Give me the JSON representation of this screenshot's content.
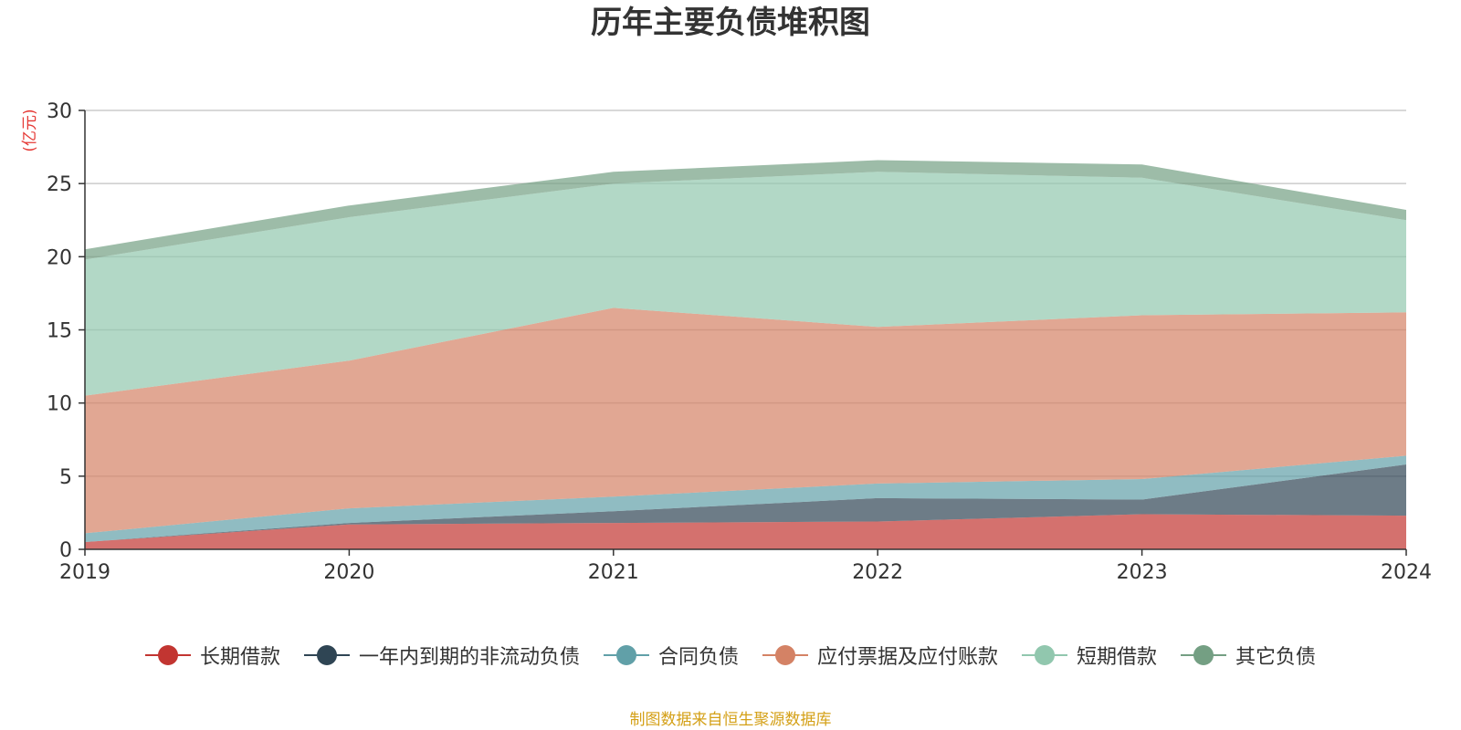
{
  "chart_data": {
    "type": "area",
    "stacked": true,
    "title": "历年主要负债堆积图",
    "ylabel": "(亿元)",
    "xlabel": "",
    "categories": [
      "2019",
      "2020",
      "2021",
      "2022",
      "2023",
      "2024"
    ],
    "ylim": [
      0,
      30
    ],
    "yticks": [
      "0",
      "5",
      "10",
      "15",
      "20",
      "25",
      "30"
    ],
    "grid": true,
    "legend_position": "bottom",
    "series": [
      {
        "name": "长期借款",
        "color": "#c23531",
        "values": [
          0.5,
          1.7,
          1.8,
          1.9,
          2.4,
          2.3
        ]
      },
      {
        "name": "一年内到期的非流动负债",
        "color": "#2f4554",
        "values": [
          0.0,
          0.1,
          0.8,
          1.6,
          1.0,
          3.5
        ]
      },
      {
        "name": "合同负债",
        "color": "#61a0a8",
        "values": [
          0.6,
          1.0,
          1.0,
          1.0,
          1.4,
          0.6
        ]
      },
      {
        "name": "应付票据及应付账款",
        "color": "#d48265",
        "values": [
          9.4,
          10.1,
          12.9,
          10.7,
          11.2,
          9.8
        ]
      },
      {
        "name": "短期借款",
        "color": "#91c7ae",
        "values": [
          9.3,
          9.8,
          8.5,
          10.6,
          9.4,
          6.3
        ]
      },
      {
        "name": "其它负债",
        "color": "#749f83",
        "values": [
          0.7,
          0.8,
          0.8,
          0.8,
          0.9,
          0.7
        ]
      }
    ]
  },
  "source_note": "制图数据来自恒生聚源数据库"
}
